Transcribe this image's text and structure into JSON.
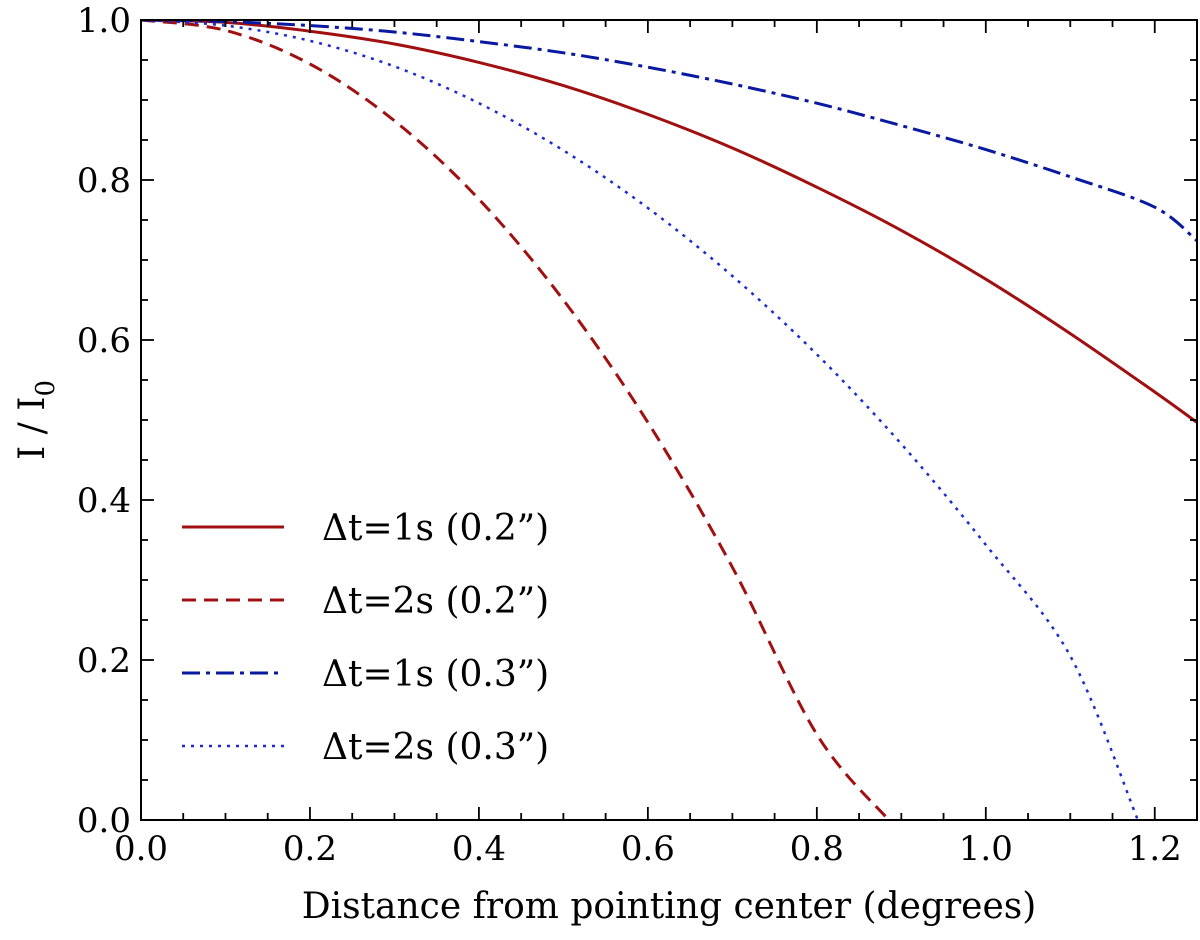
{
  "chart_data": {
    "type": "line",
    "title": "",
    "xlabel": "Distance from pointing center (degrees)",
    "ylabel_main": "I / I",
    "ylabel_sub": "0",
    "xlim": [
      0.0,
      1.25
    ],
    "ylim": [
      0.0,
      1.0
    ],
    "xticks": [
      0.0,
      0.2,
      0.4,
      0.6,
      0.8,
      1.0,
      1.2
    ],
    "yticks": [
      0.0,
      0.2,
      0.4,
      0.6,
      0.8,
      1.0
    ],
    "xtick_labels": [
      "0.0",
      "0.2",
      "0.4",
      "0.6",
      "0.8",
      "1.0",
      "1.2"
    ],
    "ytick_labels": [
      "0.0",
      "0.2",
      "0.4",
      "0.6",
      "0.8",
      "1.0"
    ],
    "grid": false,
    "legend_position": "lower-left",
    "series": [
      {
        "name": "Δt=1s (0.2”)",
        "color": "#a01010",
        "style": "solid",
        "x": [
          0.0,
          0.1,
          0.2,
          0.3,
          0.4,
          0.5,
          0.6,
          0.7,
          0.8,
          0.9,
          1.0,
          1.1,
          1.2,
          1.25
        ],
        "y": [
          1.0,
          0.997,
          0.986,
          0.97,
          0.947,
          0.918,
          0.882,
          0.84,
          0.791,
          0.737,
          0.676,
          0.608,
          0.535,
          0.497
        ]
      },
      {
        "name": "Δt=2s (0.2”)",
        "color": "#a01010",
        "style": "dashed",
        "x": [
          0.0,
          0.1,
          0.2,
          0.3,
          0.4,
          0.5,
          0.6,
          0.7,
          0.8,
          0.885
        ],
        "y": [
          1.0,
          0.987,
          0.945,
          0.874,
          0.776,
          0.65,
          0.497,
          0.316,
          0.107,
          0.0
        ]
      },
      {
        "name": "Δt=1s (0.3”)",
        "color": "#0a1aa0",
        "style": "dashdot",
        "x": [
          0.0,
          0.1,
          0.2,
          0.3,
          0.4,
          0.5,
          0.6,
          0.7,
          0.8,
          0.9,
          1.0,
          1.1,
          1.2,
          1.25
        ],
        "y": [
          1.0,
          0.998,
          0.993,
          0.985,
          0.973,
          0.959,
          0.941,
          0.92,
          0.896,
          0.868,
          0.838,
          0.804,
          0.766,
          0.724
        ]
      },
      {
        "name": "Δt=2s (0.3”)",
        "color": "#1a2ad0",
        "style": "dotted",
        "x": [
          0.0,
          0.1,
          0.2,
          0.3,
          0.4,
          0.5,
          0.6,
          0.7,
          0.8,
          0.9,
          1.0,
          1.1,
          1.18
        ],
        "y": [
          1.0,
          0.993,
          0.974,
          0.942,
          0.896,
          0.837,
          0.765,
          0.68,
          0.582,
          0.47,
          0.344,
          0.205,
          0.0
        ]
      }
    ]
  }
}
